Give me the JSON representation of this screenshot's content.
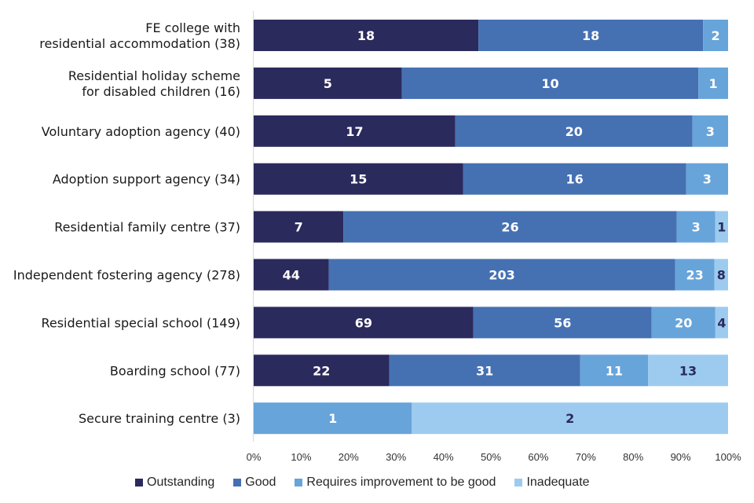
{
  "chart_data": {
    "type": "bar",
    "orientation": "horizontal",
    "stacked": "percent",
    "title": "",
    "xlabel": "",
    "ylabel": "",
    "xlim": [
      0,
      100
    ],
    "x_ticks": [
      "0%",
      "10%",
      "20%",
      "30%",
      "40%",
      "50%",
      "60%",
      "70%",
      "80%",
      "90%",
      "100%"
    ],
    "grid": false,
    "legend_position": "bottom",
    "categories": [
      [
        "FE college with",
        "residential accommodation (38)"
      ],
      [
        "Residential holiday scheme",
        "for disabled children (16)"
      ],
      [
        "Voluntary adoption agency (40)"
      ],
      [
        "Adoption support agency (34)"
      ],
      [
        "Residential family centre (37)"
      ],
      [
        "Independent fostering agency (278)"
      ],
      [
        "Residential special school (149)"
      ],
      [
        "Boarding school (77)"
      ],
      [
        "Secure training centre (3)"
      ]
    ],
    "series": [
      {
        "name": "Outstanding",
        "color": "#2b2a5c",
        "label_color": "#ffffff",
        "values": [
          18,
          5,
          17,
          15,
          7,
          44,
          69,
          22,
          0
        ]
      },
      {
        "name": "Good",
        "color": "#4571b3",
        "label_color": "#ffffff",
        "values": [
          18,
          10,
          20,
          16,
          26,
          203,
          56,
          31,
          0
        ]
      },
      {
        "name": "Requires improvement to be good",
        "color": "#67a4da",
        "label_color": "#ffffff",
        "values": [
          2,
          1,
          3,
          3,
          3,
          23,
          20,
          11,
          1
        ]
      },
      {
        "name": "Inadequate",
        "color": "#9dcbef",
        "label_color": "#2b2a5c",
        "values": [
          0,
          0,
          0,
          0,
          1,
          8,
          4,
          13,
          2
        ]
      }
    ]
  }
}
